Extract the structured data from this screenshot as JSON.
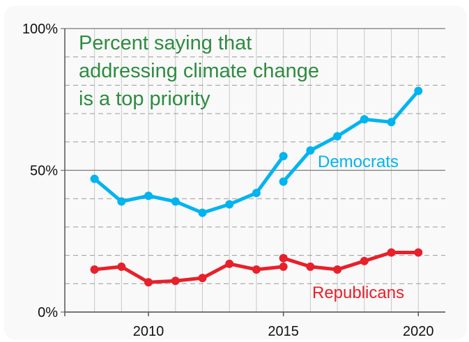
{
  "chart_data": {
    "type": "line",
    "title": "Percent saying that addressing climate change is a top priority",
    "title_lines": [
      "Percent saying that",
      "addressing climate change",
      "is a top priority"
    ],
    "xlabel": "",
    "ylabel": "",
    "xlim": [
      2006.9,
      2021
    ],
    "ylim": [
      0,
      100
    ],
    "y_ticks": [
      0,
      50,
      100
    ],
    "y_tick_labels": [
      "0%",
      "50%",
      "100%"
    ],
    "y_minor_gridlines": [
      10,
      20,
      30,
      40,
      60,
      70,
      80,
      90
    ],
    "x_ticks": [
      2010,
      2015,
      2020
    ],
    "x_tick_labels": [
      "2010",
      "2015",
      "2020"
    ],
    "x_gridlines": [
      2008,
      2009,
      2010,
      2011,
      2012,
      2013,
      2014,
      2015,
      2016,
      2017,
      2018,
      2019,
      2020
    ],
    "grid": true,
    "series": [
      {
        "name": "Democrats",
        "color": "#00b4ef",
        "segments": [
          {
            "x": [
              2008,
              2009,
              2010,
              2011,
              2012,
              2013,
              2014,
              2015
            ],
            "y": [
              47,
              39,
              41,
              39,
              35,
              38,
              42,
              55
            ]
          },
          {
            "x": [
              2015,
              2016,
              2017,
              2018,
              2019,
              2020
            ],
            "y": [
              46,
              57,
              62,
              68,
              67,
              78
            ]
          }
        ]
      },
      {
        "name": "Republicans",
        "color": "#e8202a",
        "segments": [
          {
            "x": [
              2008,
              2009,
              2010,
              2011,
              2012,
              2013,
              2014,
              2015
            ],
            "y": [
              15,
              16,
              10.5,
              11,
              12,
              17,
              15,
              16
            ]
          },
          {
            "x": [
              2015,
              2016,
              2017,
              2018,
              2019,
              2020
            ],
            "y": [
              19,
              16,
              15,
              18,
              21,
              21
            ]
          }
        ]
      }
    ],
    "title_color": "#2e8b41"
  }
}
